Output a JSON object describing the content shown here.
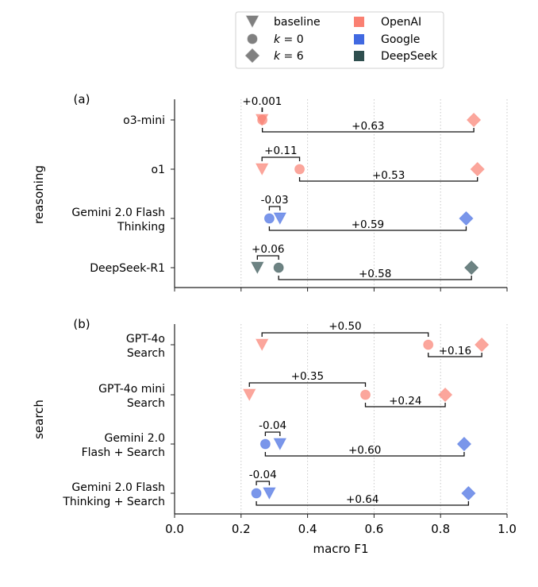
{
  "chart_data": [
    {
      "type": "scatter",
      "panel_label": "(a)",
      "ylabel": "reasoning",
      "xlabel": "",
      "xlim": [
        0.0,
        1.0
      ],
      "grid": "vertical dotted",
      "categories": [
        {
          "label": [
            "o3-mini"
          ],
          "provider": "OpenAI",
          "baseline": 0.263,
          "k0": 0.264,
          "k6": 0.9,
          "upper": {
            "from": "baseline",
            "to": "k0",
            "label": "+0.001"
          },
          "lower": {
            "from": "k0",
            "to": "k6",
            "label": "+0.63"
          }
        },
        {
          "label": [
            "o1"
          ],
          "provider": "OpenAI",
          "baseline": 0.263,
          "k0": 0.376,
          "k6": 0.911,
          "upper": {
            "from": "baseline",
            "to": "k0",
            "label": "+0.11"
          },
          "lower": {
            "from": "k0",
            "to": "k6",
            "label": "+0.53"
          }
        },
        {
          "label": [
            "Gemini 2.0 Flash",
            "Thinking"
          ],
          "provider": "Google",
          "baseline": 0.317,
          "k0": 0.285,
          "k6": 0.877,
          "upper": {
            "from": "k0",
            "to": "baseline",
            "label": "-0.03"
          },
          "lower": {
            "from": "k0",
            "to": "k6",
            "label": "+0.59"
          }
        },
        {
          "label": [
            "DeepSeek-R1"
          ],
          "provider": "DeepSeek",
          "baseline": 0.249,
          "k0": 0.313,
          "k6": 0.893,
          "upper": {
            "from": "baseline",
            "to": "k0",
            "label": "+0.06"
          },
          "lower": {
            "from": "k0",
            "to": "k6",
            "label": "+0.58"
          }
        }
      ]
    },
    {
      "type": "scatter",
      "panel_label": "(b)",
      "ylabel": "search",
      "xlabel": "macro F1",
      "xlim": [
        0.0,
        1.0
      ],
      "xticks": [
        "0.0",
        "0.2",
        "0.4",
        "0.6",
        "0.8",
        "1.0"
      ],
      "grid": "vertical dotted",
      "categories": [
        {
          "label": [
            "GPT-4o",
            "Search"
          ],
          "provider": "OpenAI",
          "baseline": 0.263,
          "k0": 0.763,
          "k6": 0.924,
          "upper": {
            "from": "baseline",
            "to": "k0",
            "label": "+0.50"
          },
          "lower": {
            "from": "k0",
            "to": "k6",
            "label": "+0.16"
          }
        },
        {
          "label": [
            "GPT-4o mini",
            "Search"
          ],
          "provider": "OpenAI",
          "baseline": 0.225,
          "k0": 0.574,
          "k6": 0.814,
          "upper": {
            "from": "baseline",
            "to": "k0",
            "label": "+0.35"
          },
          "lower": {
            "from": "k0",
            "to": "k6",
            "label": "+0.24"
          }
        },
        {
          "label": [
            "Gemini 2.0",
            "Flash + Search"
          ],
          "provider": "Google",
          "baseline": 0.317,
          "k0": 0.273,
          "k6": 0.871,
          "upper": {
            "from": "k0",
            "to": "baseline",
            "label": "-0.04"
          },
          "lower": {
            "from": "k0",
            "to": "k6",
            "label": "+0.60"
          }
        },
        {
          "label": [
            "Gemini 2.0 Flash",
            "Thinking + Search"
          ],
          "provider": "Google",
          "baseline": 0.285,
          "k0": 0.246,
          "k6": 0.884,
          "upper": {
            "from": "k0",
            "to": "baseline",
            "label": "-0.04"
          },
          "lower": {
            "from": "k0",
            "to": "k6",
            "label": "+0.64"
          }
        }
      ]
    }
  ],
  "legend": {
    "placement": "top-center",
    "markers": [
      {
        "key": "baseline",
        "label": "baseline",
        "shape": "triangle-down"
      },
      {
        "key": "k0",
        "label_italic": "k",
        "label_rest": " = 0",
        "shape": "circle"
      },
      {
        "key": "k6",
        "label_italic": "k",
        "label_rest": " = 6",
        "shape": "diamond"
      }
    ],
    "providers": [
      {
        "label": "OpenAI",
        "color": "#FA8072"
      },
      {
        "label": "Google",
        "color": "#4169E1"
      },
      {
        "label": "DeepSeek",
        "color": "#2F4F4F"
      }
    ]
  },
  "colors": {
    "OpenAI": "#FA8072",
    "Google": "#4169E1",
    "DeepSeek": "#2F4F4F",
    "legend_marker": "#808080"
  }
}
